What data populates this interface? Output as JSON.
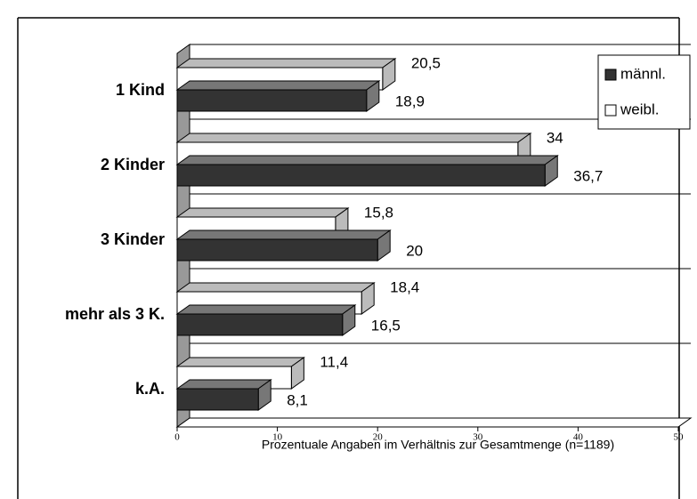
{
  "chart_data": {
    "type": "bar",
    "orientation": "horizontal",
    "categories": [
      "1 Kind",
      "2 Kinder",
      "3 Kinder",
      "mehr als 3 K.",
      "k.A."
    ],
    "series": [
      {
        "name": "männl.",
        "color": "#333333",
        "values": [
          18.9,
          36.7,
          20,
          16.5,
          8.1
        ],
        "value_labels": [
          "18,9",
          "36,7",
          "20",
          "16,5",
          "8,1"
        ]
      },
      {
        "name": "weibl.",
        "color": "#ffffff",
        "values": [
          20.5,
          34,
          15.8,
          18.4,
          11.4
        ],
        "value_labels": [
          "20,5",
          "34",
          "15,8",
          "18,4",
          "11,4"
        ]
      }
    ],
    "xlabel": "Prozentuale Angaben im Verhältnis zur Gesamtmenge (n=1189)",
    "xlim": [
      0,
      50
    ],
    "xticks": [
      0,
      10,
      20,
      30,
      40,
      50
    ],
    "grid": true,
    "legend": "upper right"
  }
}
